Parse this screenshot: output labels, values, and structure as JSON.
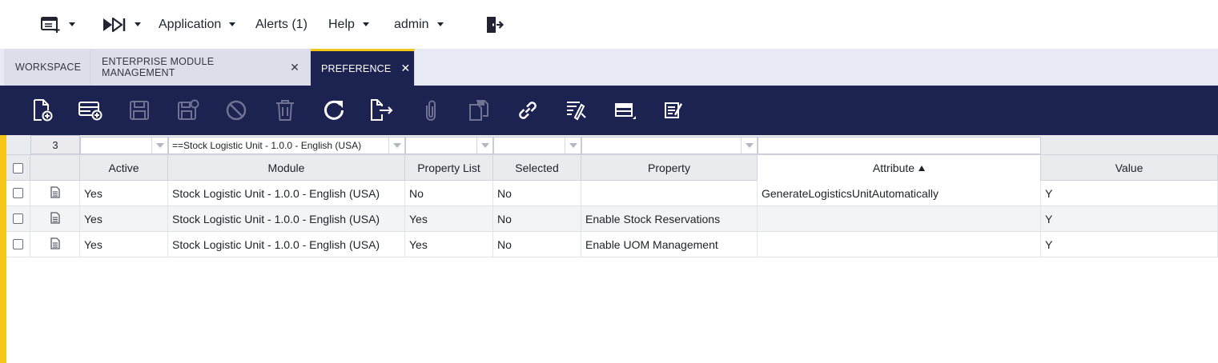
{
  "menu": {
    "items": [
      {
        "label": "Application"
      },
      {
        "label": "Alerts (1)"
      },
      {
        "label": "Help"
      },
      {
        "label": "admin"
      }
    ],
    "icons": [
      "new-window-icon",
      "fast-forward-icon",
      "logout-icon"
    ]
  },
  "tabs": [
    {
      "label": "WORKSPACE",
      "closable": false,
      "active": false
    },
    {
      "label": "ENTERPRISE MODULE MANAGEMENT",
      "closable": true,
      "active": false
    },
    {
      "label": "PREFERENCE",
      "closable": true,
      "active": true
    }
  ],
  "tab_close_glyph": "✕",
  "toolbar": {
    "buttons": [
      {
        "name": "new-document-icon",
        "enabled": true
      },
      {
        "name": "new-row-icon",
        "enabled": true
      },
      {
        "name": "save-icon",
        "enabled": false
      },
      {
        "name": "save-close-icon",
        "enabled": false
      },
      {
        "name": "undo-cancel-icon",
        "enabled": false
      },
      {
        "name": "delete-icon",
        "enabled": false
      },
      {
        "name": "refresh-icon",
        "enabled": true
      },
      {
        "name": "export-icon",
        "enabled": true
      },
      {
        "name": "attachment-icon",
        "enabled": false
      },
      {
        "name": "clone-icon",
        "enabled": false
      },
      {
        "name": "link-icon",
        "enabled": true
      },
      {
        "name": "audit-trail-icon",
        "enabled": true
      },
      {
        "name": "grid-view-icon",
        "enabled": true
      },
      {
        "name": "notes-icon",
        "enabled": true
      }
    ],
    "colors": {
      "enabled": "#ffffff",
      "disabled": "#6e7391",
      "background": "#1c2351"
    }
  },
  "grid": {
    "record_count": "3",
    "filters": {
      "active": "",
      "module": "==Stock Logistic Unit - 1.0.0 - English (USA)",
      "property_list": "",
      "selected": "",
      "property": "",
      "attribute": ""
    },
    "columns": [
      "Active",
      "Module",
      "Property List",
      "Selected",
      "Property",
      "Attribute",
      "Value"
    ],
    "sorted_column": "Attribute",
    "rows": [
      {
        "active": "Yes",
        "module": "Stock Logistic Unit - 1.0.0 - English (USA)",
        "property_list": "No",
        "selected": "No",
        "property": "",
        "attribute": "GenerateLogisticsUnitAutomatically",
        "value": "Y"
      },
      {
        "active": "Yes",
        "module": "Stock Logistic Unit - 1.0.0 - English (USA)",
        "property_list": "Yes",
        "selected": "No",
        "property": "Enable Stock Reservations",
        "attribute": "",
        "value": "Y"
      },
      {
        "active": "Yes",
        "module": "Stock Logistic Unit - 1.0.0 - English (USA)",
        "property_list": "Yes",
        "selected": "No",
        "property": "Enable UOM Management",
        "attribute": "",
        "value": "Y"
      }
    ]
  },
  "colors": {
    "accent": "#f5c518",
    "nav": "#1c2351"
  }
}
